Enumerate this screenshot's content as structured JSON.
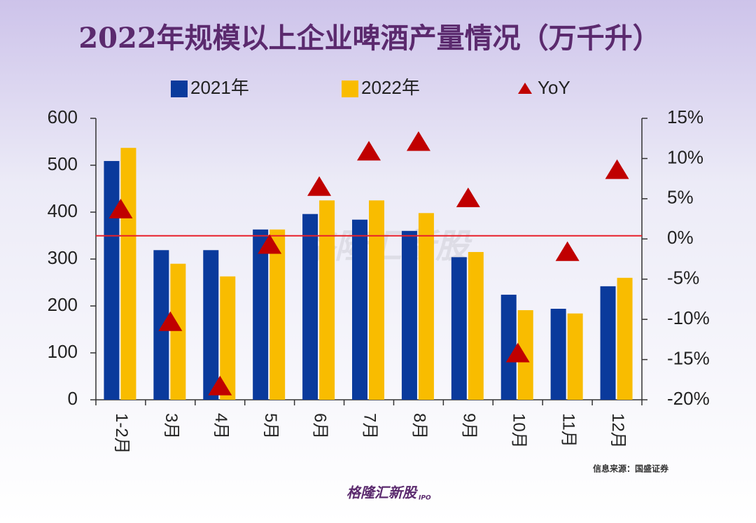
{
  "chart_data": {
    "type": "bar",
    "title": "2022年规模以上企业啤酒产量情况（万千升）",
    "categories": [
      "1-2月",
      "3月",
      "4月",
      "5月",
      "6月",
      "7月",
      "8月",
      "9月",
      "10月",
      "11月",
      "12月"
    ],
    "series": [
      {
        "name": "2021年",
        "color": "#0a3a9c",
        "values": [
          509,
          319,
          319,
          363,
          396,
          384,
          360,
          304,
          224,
          194,
          242
        ]
      },
      {
        "name": "2022年",
        "color": "#f9bc00",
        "values": [
          537,
          290,
          263,
          363,
          425,
          425,
          398,
          315,
          191,
          184,
          260
        ]
      },
      {
        "name": "YoY",
        "color": "#c00000",
        "type": "scatter",
        "axis": "y2",
        "values": [
          3.6,
          -10.4,
          -18.4,
          -0.8,
          6.4,
          10.8,
          12.0,
          5.0,
          -14.3,
          -1.7,
          8.5
        ]
      }
    ],
    "ylim": [
      0,
      600
    ],
    "yticks": [
      0,
      100,
      200,
      300,
      400,
      500,
      600
    ],
    "y2lim": [
      -20,
      15
    ],
    "y2ticks": [
      {
        "value": -20,
        "label": "-20%"
      },
      {
        "value": -15,
        "label": "-15%"
      },
      {
        "value": -10,
        "label": "-10%"
      },
      {
        "value": -5,
        "label": "-5%"
      },
      {
        "value": 0,
        "label": "0%"
      },
      {
        "value": 5,
        "label": "5%"
      },
      {
        "value": 10,
        "label": "10%"
      },
      {
        "value": 15,
        "label": "15%"
      }
    ],
    "reference_line": {
      "axis": "y2",
      "value": 0.4,
      "color": "#e8202a"
    },
    "source": "信息来源：国盛证券",
    "watermark": "格隆汇新股",
    "footer": "格隆汇新股",
    "footer_tag": "IPO"
  }
}
